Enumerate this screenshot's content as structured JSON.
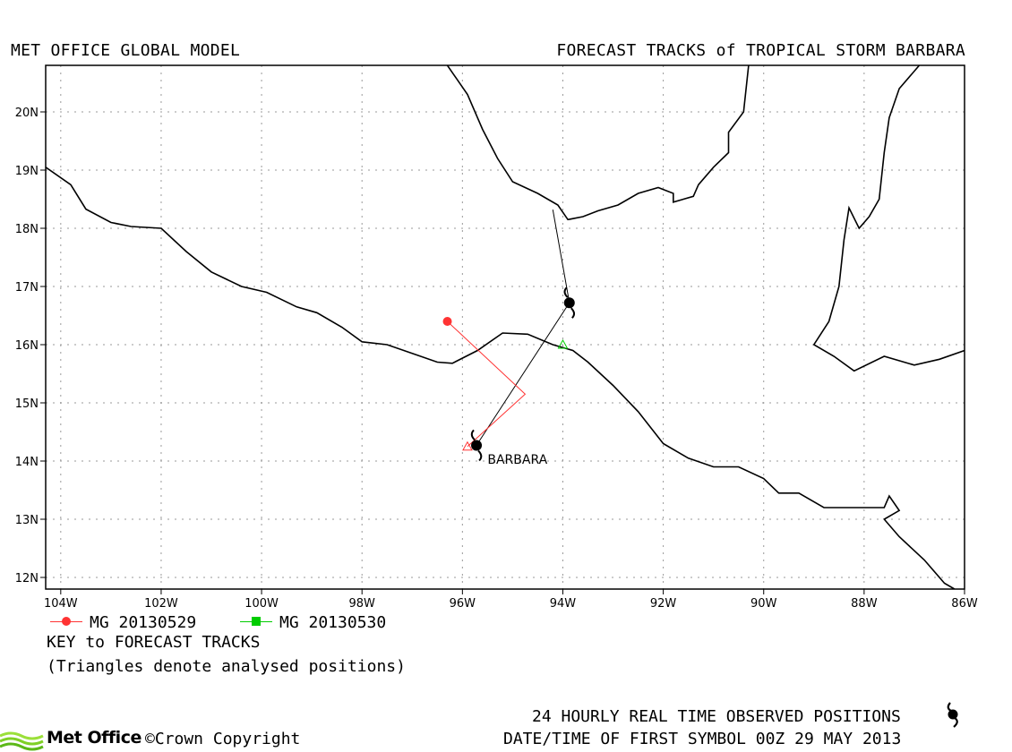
{
  "header": {
    "left": "MET OFFICE GLOBAL MODEL",
    "right": "FORECAST TRACKS of TROPICAL STORM BARBARA"
  },
  "map": {
    "lon_range": [
      -104.3,
      -86
    ],
    "lat_range": [
      11.8,
      20.8
    ],
    "grid": true,
    "lon_ticks": [
      {
        "v": -104,
        "label": "104W"
      },
      {
        "v": -102,
        "label": "102W"
      },
      {
        "v": -100,
        "label": "100W"
      },
      {
        "v": -98,
        "label": "98W"
      },
      {
        "v": -96,
        "label": "96W"
      },
      {
        "v": -94,
        "label": "94W"
      },
      {
        "v": -92,
        "label": "92W"
      },
      {
        "v": -90,
        "label": "90W"
      },
      {
        "v": -88,
        "label": "88W"
      },
      {
        "v": -86,
        "label": "86W"
      }
    ],
    "lat_ticks": [
      {
        "v": 12,
        "label": "12N"
      },
      {
        "v": 13,
        "label": "13N"
      },
      {
        "v": 14,
        "label": "14N"
      },
      {
        "v": 15,
        "label": "15N"
      },
      {
        "v": 16,
        "label": "16N"
      },
      {
        "v": 17,
        "label": "17N"
      },
      {
        "v": 18,
        "label": "18N"
      },
      {
        "v": 19,
        "label": "19N"
      },
      {
        "v": 20,
        "label": "20N"
      }
    ],
    "coastlines": [
      [
        [
          -104.3,
          19.05
        ],
        [
          -103.8,
          18.75
        ],
        [
          -103.5,
          18.33
        ],
        [
          -103,
          18.1
        ],
        [
          -102.6,
          18.03
        ],
        [
          -102.0,
          18.0
        ],
        [
          -101.5,
          17.6
        ],
        [
          -101.0,
          17.25
        ],
        [
          -100.4,
          17.0
        ],
        [
          -99.9,
          16.9
        ],
        [
          -99.3,
          16.65
        ],
        [
          -98.9,
          16.55
        ],
        [
          -98.4,
          16.3
        ],
        [
          -98.0,
          16.05
        ],
        [
          -97.5,
          16.0
        ],
        [
          -97.0,
          15.85
        ],
        [
          -96.5,
          15.7
        ],
        [
          -96.2,
          15.68
        ],
        [
          -95.7,
          15.9
        ],
        [
          -95.2,
          16.2
        ],
        [
          -94.7,
          16.18
        ],
        [
          -94.2,
          16.0
        ],
        [
          -93.8,
          15.9
        ],
        [
          -93.5,
          15.7
        ],
        [
          -93.0,
          15.3
        ],
        [
          -92.5,
          14.85
        ],
        [
          -92.0,
          14.3
        ],
        [
          -91.5,
          14.05
        ],
        [
          -91.0,
          13.9
        ],
        [
          -90.5,
          13.9
        ],
        [
          -90.0,
          13.7
        ],
        [
          -89.7,
          13.45
        ],
        [
          -89.3,
          13.45
        ],
        [
          -88.8,
          13.2
        ],
        [
          -88.0,
          13.2
        ],
        [
          -87.6,
          13.2
        ],
        [
          -87.5,
          13.4
        ],
        [
          -87.3,
          13.15
        ],
        [
          -87.6,
          13.0
        ],
        [
          -87.3,
          12.7
        ],
        [
          -86.8,
          12.3
        ],
        [
          -86.4,
          11.9
        ],
        [
          -86.2,
          11.8
        ]
      ],
      [
        [
          -96.3,
          20.8
        ],
        [
          -95.9,
          20.3
        ],
        [
          -95.6,
          19.7
        ],
        [
          -95.3,
          19.2
        ],
        [
          -95.0,
          18.8
        ],
        [
          -94.5,
          18.6
        ],
        [
          -94.1,
          18.4
        ],
        [
          -93.9,
          18.15
        ],
        [
          -93.6,
          18.2
        ],
        [
          -93.3,
          18.3
        ],
        [
          -92.9,
          18.4
        ],
        [
          -92.5,
          18.6
        ],
        [
          -92.1,
          18.7
        ],
        [
          -91.8,
          18.6
        ],
        [
          -91.8,
          18.45
        ],
        [
          -91.4,
          18.55
        ],
        [
          -91.3,
          18.75
        ],
        [
          -91.0,
          19.05
        ],
        [
          -90.7,
          19.3
        ],
        [
          -90.7,
          19.65
        ],
        [
          -90.4,
          20.0
        ],
        [
          -90.3,
          20.8
        ]
      ],
      [
        [
          -86.9,
          20.8
        ],
        [
          -87.3,
          20.4
        ],
        [
          -87.5,
          19.9
        ],
        [
          -87.6,
          19.3
        ],
        [
          -87.7,
          18.5
        ],
        [
          -87.9,
          18.2
        ],
        [
          -88.1,
          18.0
        ],
        [
          -88.3,
          18.35
        ],
        [
          -88.4,
          17.8
        ],
        [
          -88.5,
          17.0
        ],
        [
          -88.7,
          16.4
        ],
        [
          -89.0,
          16.0
        ],
        [
          -88.6,
          15.8
        ],
        [
          -88.2,
          15.55
        ],
        [
          -87.6,
          15.8
        ],
        [
          -87.0,
          15.65
        ],
        [
          -86.5,
          15.75
        ],
        [
          -86.0,
          15.9
        ]
      ]
    ]
  },
  "chart_data": {
    "type": "map-tracks",
    "observed_track": [
      [
        -95.72,
        14.27
      ],
      [
        -93.87,
        16.72
      ],
      [
        -94.2,
        18.32
      ]
    ],
    "storm_symbols": [
      [
        -95.72,
        14.27
      ],
      [
        -93.87,
        16.72
      ]
    ],
    "storm_label": {
      "text": "BARBARA",
      "lon": -95.5,
      "lat": 14.05
    },
    "forecasts": [
      {
        "name": "MG 20130529",
        "color": "#ff3333",
        "marker": "circle",
        "points": [
          [
            -96.3,
            16.4
          ],
          [
            -94.75,
            15.15
          ],
          [
            -95.9,
            14.25
          ]
        ],
        "start": [
          -96.3,
          16.4
        ],
        "analysed": [
          -95.9,
          14.25
        ]
      },
      {
        "name": "MG 20130530",
        "color": "#00cc00",
        "marker": "square",
        "points": [
          [
            -94.0,
            16.0
          ]
        ],
        "start": null,
        "analysed": [
          -94.0,
          16.0
        ]
      }
    ]
  },
  "legend": {
    "items": [
      {
        "label": "MG 20130529",
        "color": "#ff3333",
        "marker": "circle"
      },
      {
        "label": "MG 20130530",
        "color": "#00cc00",
        "marker": "square"
      }
    ],
    "key_title": "KEY to FORECAST TRACKS",
    "key_note": "(Triangles denote analysed positions)"
  },
  "footer": {
    "observed": "24 HOURLY REAL TIME OBSERVED POSITIONS",
    "datetime": "DATE/TIME OF FIRST SYMBOL 00Z 29 MAY 2013",
    "logo_name": "Met Office",
    "copyright": "©Crown Copyright"
  }
}
